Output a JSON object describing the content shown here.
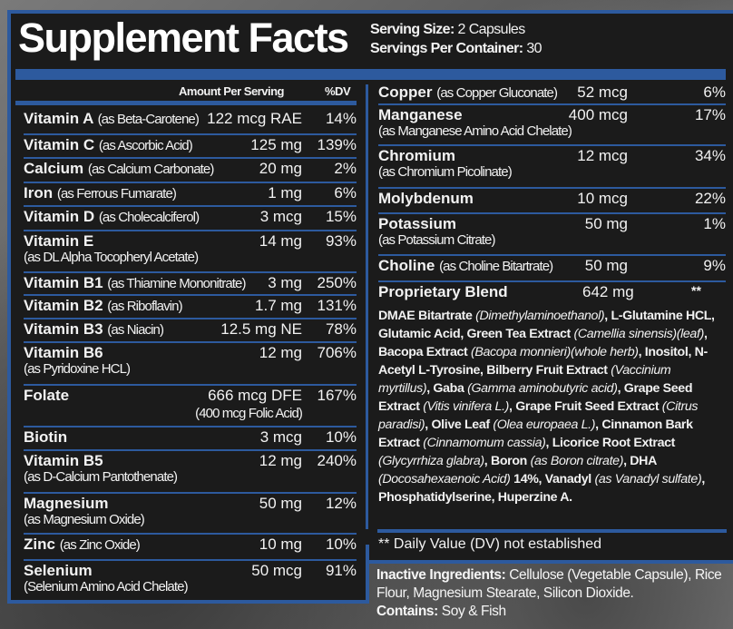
{
  "header": {
    "title": "Supplement Facts",
    "serving_size_label": "Serving Size:",
    "serving_size_value": "2 Capsules",
    "servings_label": "Servings Per Container:",
    "servings_value": "30"
  },
  "columns": {
    "amount": "Amount Per Serving",
    "dv": "%DV"
  },
  "left_rows": [
    {
      "name": "Vitamin A",
      "source": "(as Beta-Carotene)",
      "amount": "122 mcg RAE",
      "dv": "14%"
    },
    {
      "name": "Vitamin C",
      "source": "(as Ascorbic Acid)",
      "amount": "125 mg",
      "dv": "139%"
    },
    {
      "name": "Calcium",
      "source": "(as Calcium Carbonate)",
      "amount": "20 mg",
      "dv": "2%"
    },
    {
      "name": "Iron",
      "source": "(as Ferrous Fumarate)",
      "amount": "1 mg",
      "dv": "6%"
    },
    {
      "name": "Vitamin D",
      "source": "(as Cholecalciferol)",
      "amount": "3 mcg",
      "dv": "15%"
    },
    {
      "name": "Vitamin E",
      "source": "(as DL Alpha Tocopheryl Acetate)",
      "amount": "14 mg",
      "dv": "93%"
    },
    {
      "name": "Vitamin B1",
      "source": "(as Thiamine Mononitrate)",
      "amount": "3 mg",
      "dv": "250%"
    },
    {
      "name": "Vitamin B2",
      "source": "(as Riboflavin)",
      "amount": "1.7 mg",
      "dv": "131%"
    },
    {
      "name": "Vitamin B3",
      "source": "(as Niacin)",
      "amount": "12.5 mg NE",
      "dv": "78%"
    },
    {
      "name": "Vitamin B6",
      "source": "(as Pyridoxine HCL)",
      "amount": "12 mg",
      "dv": "706%"
    },
    {
      "name": "Folate",
      "source": "",
      "amount": "666 mcg DFE",
      "amount_note": "(400 mcg Folic Acid)",
      "dv": "167%"
    },
    {
      "name": "Biotin",
      "source": "",
      "amount": "3 mcg",
      "dv": "10%"
    },
    {
      "name": "Vitamin B5",
      "source": "(as D-Calcium Pantothenate)",
      "amount": "12 mg",
      "dv": "240%"
    },
    {
      "name": "Magnesium",
      "source": "(as Magnesium Oxide)",
      "amount": "50 mg",
      "dv": "12%"
    },
    {
      "name": "Zinc",
      "source": "(as Zinc Oxide)",
      "amount": "10 mg",
      "dv": "10%"
    },
    {
      "name": "Selenium",
      "source": "(Selenium Amino Acid Chelate)",
      "amount": "50 mcg",
      "dv": "91%"
    }
  ],
  "right_rows": [
    {
      "name": "Copper",
      "source": "(as Copper Gluconate)",
      "amount": "52 mcg",
      "dv": "6%"
    },
    {
      "name": "Manganese",
      "source": "(as Manganese Amino Acid Chelate)",
      "amount": "400 mcg",
      "dv": "17%"
    },
    {
      "name": "Chromium",
      "source": "(as Chromium Picolinate)",
      "amount": "12 mcg",
      "dv": "34%"
    },
    {
      "name": "Molybdenum",
      "source": "",
      "amount": "10 mcg",
      "dv": "22%"
    },
    {
      "name": "Potassium",
      "source": "(as Potassium Citrate)",
      "amount": "50 mg",
      "dv": "1%"
    },
    {
      "name": "Choline",
      "source": "(as Choline Bitartrate)",
      "amount": "50 mg",
      "dv": "9%"
    }
  ],
  "blend": {
    "name": "Proprietary Blend",
    "amount": "642 mg",
    "dv": "**",
    "ingredients": [
      {
        "t": "DMAE Bitartrate ",
        "s": "b"
      },
      {
        "t": "(Dimethylaminoethanol)",
        "s": "i"
      },
      {
        "t": ", L-Glutamine HCL, Glutamic Acid, Green Tea Extract ",
        "s": "b"
      },
      {
        "t": "(Camellia sinensis)(leaf)",
        "s": "i"
      },
      {
        "t": ", Bacopa Extract ",
        "s": "b"
      },
      {
        "t": "(Bacopa monnieri)(whole herb)",
        "s": "i"
      },
      {
        "t": ", Inositol, N-Acetyl L-Tyrosine, Bilberry Fruit Extract ",
        "s": "b"
      },
      {
        "t": "(Vaccinium myrtillus)",
        "s": "i"
      },
      {
        "t": ", Gaba ",
        "s": "b"
      },
      {
        "t": "(Gamma aminobutyric acid)",
        "s": "i"
      },
      {
        "t": ", Grape Seed Extract ",
        "s": "b"
      },
      {
        "t": "(Vitis vinifera L.)",
        "s": "i"
      },
      {
        "t": ", Grape Fruit Seed Extract ",
        "s": "b"
      },
      {
        "t": "(Citrus paradisi)",
        "s": "i"
      },
      {
        "t": ", Olive Leaf ",
        "s": "b"
      },
      {
        "t": "(Olea europaea L.)",
        "s": "i"
      },
      {
        "t": ", Cinnamon Bark Extract ",
        "s": "b"
      },
      {
        "t": "(Cinnamomum cassia)",
        "s": "i"
      },
      {
        "t": ", Licorice Root Extract ",
        "s": "b"
      },
      {
        "t": "(Glycyrrhiza glabra)",
        "s": "i"
      },
      {
        "t": ", Boron ",
        "s": "b"
      },
      {
        "t": "(as Boron citrate)",
        "s": "i"
      },
      {
        "t": ", DHA ",
        "s": "b"
      },
      {
        "t": "(Docosahexaenoic Acid)",
        "s": "i"
      },
      {
        "t": " 14%, Vanadyl ",
        "s": "b"
      },
      {
        "t": "(as Vanadyl sulfate)",
        "s": "i"
      },
      {
        "t": ", Phosphatidylserine, Huperzine A.",
        "s": "b"
      }
    ]
  },
  "footnote": "** Daily Value (DV) not established",
  "inactive": {
    "label": "Inactive Ingredients:",
    "text": " Cellulose (Vegetable Capsule), Rice Flour, Magnesium Stearate, Silicon Dioxide.",
    "contains_label": "Contains:",
    "contains_text": " Soy & Fish"
  },
  "colors": {
    "accent": "#2d5a9e",
    "panel": "#1b1b1b",
    "text": "#f2f2f2"
  }
}
